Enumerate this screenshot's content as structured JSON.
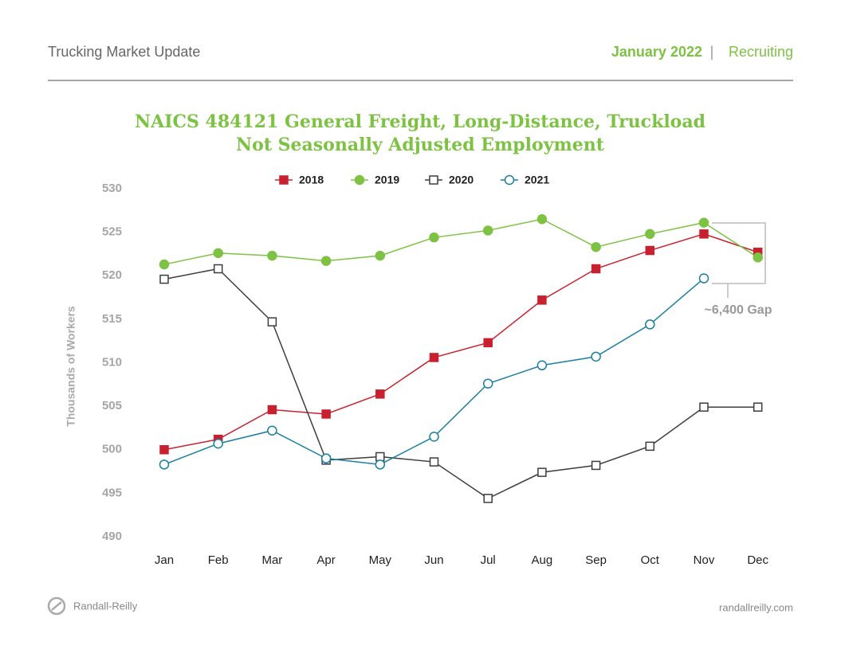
{
  "header": {
    "title": "Trucking Market Update",
    "date": "January 2022",
    "separator": "|",
    "section": "Recruiting"
  },
  "footer": {
    "brand": "Randall-Reilly",
    "url": "randallreilly.com"
  },
  "chart_data": {
    "type": "line",
    "title": "NAICS 484121 General Freight, Long-Distance, Truckload",
    "subtitle": "Not Seasonally Adjusted Employment",
    "y_label": "Thousands of Workers",
    "annotation": "~6,400 Gap",
    "categories": [
      "Jan",
      "Feb",
      "Mar",
      "Apr",
      "May",
      "Jun",
      "Jul",
      "Aug",
      "Sep",
      "Oct",
      "Nov",
      "Dec"
    ],
    "series": [
      {
        "name": "2018",
        "color": "#c8202f",
        "marker": "square",
        "filled": true,
        "values": [
          500.0,
          501.2,
          504.6,
          504.1,
          506.4,
          510.6,
          512.3,
          517.2,
          520.8,
          522.9,
          524.8,
          522.7
        ]
      },
      {
        "name": "2019",
        "color": "#7dc242",
        "marker": "circle",
        "filled": true,
        "values": [
          521.3,
          522.6,
          522.3,
          521.7,
          522.3,
          524.4,
          525.2,
          526.5,
          523.3,
          524.8,
          526.1,
          522.1
        ]
      },
      {
        "name": "2020",
        "color": "#3d3d3d",
        "marker": "square",
        "filled": false,
        "values": [
          519.6,
          520.8,
          514.7,
          498.8,
          499.2,
          498.6,
          494.4,
          497.4,
          498.2,
          500.4,
          504.9,
          504.9
        ]
      },
      {
        "name": "2021",
        "color": "#1a7fa0",
        "marker": "circle",
        "filled": false,
        "values": [
          498.3,
          500.7,
          502.2,
          499.0,
          498.3,
          501.5,
          507.6,
          509.7,
          510.7,
          514.4,
          519.7,
          null
        ]
      }
    ],
    "ylim": [
      490,
      530
    ],
    "yticks": [
      490,
      495,
      500,
      505,
      510,
      515,
      520,
      525,
      530
    ],
    "grid": false
  }
}
